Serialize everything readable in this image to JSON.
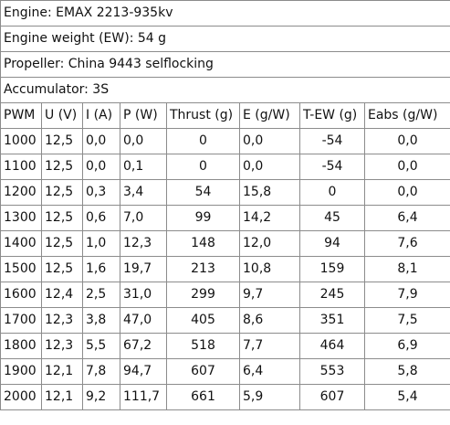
{
  "info": [
    "Engine: EMAX 2213-935kv",
    "Engine weight (EW): 54 g",
    "Propeller: China 9443 selflocking",
    "Accumulator: 3S"
  ],
  "columns": [
    "PWM",
    "U (V)",
    "I (A)",
    "P (W)",
    "Thrust (g)",
    "E (g/W)",
    "T-EW (g)",
    "Eabs (g/W)"
  ],
  "rows": [
    [
      "1000",
      "12,5",
      "0,0",
      "0,0",
      "0",
      "0,0",
      "-54",
      "0,0"
    ],
    [
      "1100",
      "12,5",
      "0,0",
      "0,1",
      "0",
      "0,0",
      "-54",
      "0,0"
    ],
    [
      "1200",
      "12,5",
      "0,3",
      "3,4",
      "54",
      "15,8",
      "0",
      "0,0"
    ],
    [
      "1300",
      "12,5",
      "0,6",
      "7,0",
      "99",
      "14,2",
      "45",
      "6,4"
    ],
    [
      "1400",
      "12,5",
      "1,0",
      "12,3",
      "148",
      "12,0",
      "94",
      "7,6"
    ],
    [
      "1500",
      "12,5",
      "1,6",
      "19,7",
      "213",
      "10,8",
      "159",
      "8,1"
    ],
    [
      "1600",
      "12,4",
      "2,5",
      "31,0",
      "299",
      "9,7",
      "245",
      "7,9"
    ],
    [
      "1700",
      "12,3",
      "3,8",
      "47,0",
      "405",
      "8,6",
      "351",
      "7,5"
    ],
    [
      "1800",
      "12,3",
      "5,5",
      "67,2",
      "518",
      "7,7",
      "464",
      "6,9"
    ],
    [
      "1900",
      "12,1",
      "7,8",
      "94,7",
      "607",
      "6,4",
      "553",
      "5,8"
    ],
    [
      "2000",
      "12,1",
      "9,2",
      "111,7",
      "661",
      "5,9",
      "607",
      "5,4"
    ]
  ]
}
